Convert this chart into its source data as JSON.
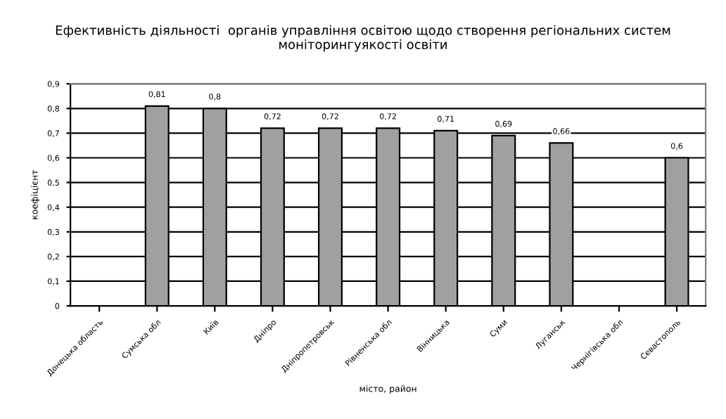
{
  "chart_data": {
    "type": "bar",
    "title": "Ефективність діяльності  органів управління освітою щодо створення регіональних систем моніторингуякості освіти",
    "xlabel": "місто, район",
    "ylabel": "коефіцієнт",
    "categories": [
      "Донецька область",
      "Сумська обл",
      "Київ",
      "Дніпро",
      "Дніпропетровськ",
      "Рівненська обл",
      "Вінницька",
      "Суми",
      "Луганськ",
      "Чернігівська обл",
      "Севастополь"
    ],
    "values": [
      null,
      0.81,
      0.8,
      0.72,
      0.72,
      0.72,
      0.71,
      0.69,
      0.66,
      null,
      0.6
    ],
    "value_labels": [
      null,
      "0,81",
      "0,8",
      "0,72",
      "0,72",
      "0,72",
      "0,71",
      "0,69",
      "0,66",
      null,
      "0,6"
    ],
    "color": "#a0a0a0",
    "ylim": [
      0,
      0.9
    ],
    "yticks": [
      {
        "value": 0,
        "label": "0"
      },
      {
        "value": 0.1,
        "label": "0,1"
      },
      {
        "value": 0.2,
        "label": "0,2"
      },
      {
        "value": 0.3,
        "label": "0,3"
      },
      {
        "value": 0.4,
        "label": "0,4"
      },
      {
        "value": 0.5,
        "label": "0,5"
      },
      {
        "value": 0.6,
        "label": "0,6"
      },
      {
        "value": 0.7,
        "label": "0,7"
      },
      {
        "value": 0.8,
        "label": "0,8"
      },
      {
        "value": 0.9,
        "label": "0,9"
      }
    ],
    "grid": "y",
    "legend": false
  }
}
